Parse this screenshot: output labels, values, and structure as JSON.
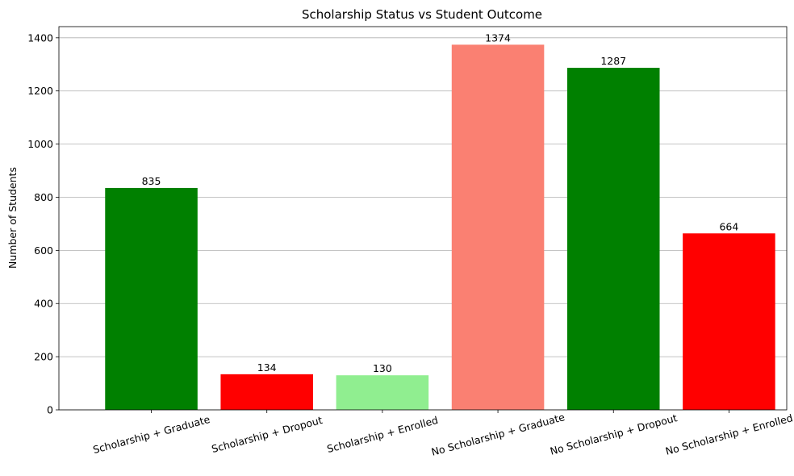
{
  "chart_data": {
    "type": "bar",
    "title": "Scholarship Status vs Student Outcome",
    "xlabel": "",
    "ylabel": "Number of Students",
    "categories": [
      "Scholarship + Graduate",
      "Scholarship + Dropout",
      "Scholarship + Enrolled",
      "No Scholarship + Graduate",
      "No Scholarship + Dropout",
      "No Scholarship + Enrolled"
    ],
    "values": [
      835,
      134,
      130,
      1374,
      1287,
      664
    ],
    "colors": [
      "#008000",
      "#ff0000",
      "#90ee90",
      "#fa8072",
      "#008000",
      "#ff0000"
    ],
    "ylim": [
      0,
      1442
    ],
    "yticks": [
      0,
      200,
      400,
      600,
      800,
      1000,
      1200,
      1400
    ],
    "grid": "y",
    "legend": "none"
  }
}
